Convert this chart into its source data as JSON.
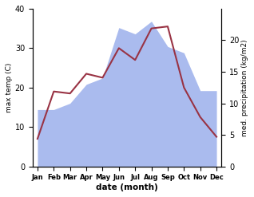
{
  "months": [
    "Jan",
    "Feb",
    "Mar",
    "Apr",
    "May",
    "Jun",
    "Jul",
    "Aug",
    "Sep",
    "Oct",
    "Nov",
    "Dec"
  ],
  "month_indices": [
    0,
    1,
    2,
    3,
    4,
    5,
    6,
    7,
    8,
    9,
    10,
    11
  ],
  "max_temp": [
    7.0,
    19.0,
    18.5,
    23.5,
    22.5,
    30.0,
    27.0,
    35.0,
    35.5,
    20.0,
    12.5,
    7.5
  ],
  "precipitation_mm": [
    9,
    9,
    10,
    13,
    14,
    22,
    21,
    23,
    19,
    18,
    12,
    12
  ],
  "temp_color": "#993344",
  "precip_fill_color": "#aabbee",
  "temp_ylim": [
    0,
    40
  ],
  "precip_ylim": [
    0,
    25
  ],
  "ylabel_left": "max temp (C)",
  "ylabel_right": "med. precipitation (kg/m2)",
  "xlabel": "date (month)",
  "right_yticks": [
    0,
    5,
    10,
    15,
    20
  ],
  "left_yticks": [
    0,
    10,
    20,
    30,
    40
  ],
  "line_width": 1.5,
  "bg_color": "#ffffff"
}
